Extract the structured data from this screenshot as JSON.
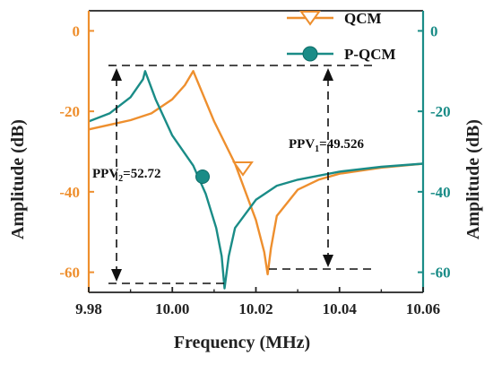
{
  "chart_data": {
    "type": "line",
    "xlabel": "Frequency (MHz)",
    "ylabel_left": "Amplitude (dB)",
    "ylabel_right": "Amplitude (dB)",
    "xlim": [
      9.98,
      10.06
    ],
    "ylim": [
      -65,
      5
    ],
    "x_ticks": [
      "9.98",
      "10.00",
      "10.02",
      "10.04",
      "10.06"
    ],
    "y_ticks_left": [
      "0",
      "-20",
      "-40",
      "-60"
    ],
    "y_ticks_right": [
      "0",
      "-20",
      "-40",
      "-60"
    ],
    "grid": false,
    "legend_position": "top-right",
    "series": [
      {
        "name": "QCM",
        "color": "#ee8f2e",
        "marker": "triangle-down",
        "x": [
          9.98,
          9.99,
          9.995,
          10.0,
          10.003,
          10.005,
          10.01,
          10.015,
          10.02,
          10.022,
          10.0228,
          10.0236,
          10.025,
          10.03,
          10.035,
          10.04,
          10.05,
          10.06
        ],
        "y": [
          -24.5,
          -22.2,
          -20.5,
          -17.0,
          -13.5,
          -10.0,
          -22.5,
          -33.0,
          -47.0,
          -55.0,
          -60.5,
          -54.0,
          -46.0,
          -39.5,
          -37.0,
          -35.5,
          -34.0,
          -33.0
        ]
      },
      {
        "name": "P-QCM",
        "color": "#1a8c87",
        "marker": "circle",
        "x": [
          9.98,
          9.985,
          9.99,
          9.993,
          9.9935,
          9.996,
          10.0,
          10.005,
          10.008,
          10.0105,
          10.0118,
          10.0125,
          10.0135,
          10.015,
          10.02,
          10.025,
          10.03,
          10.04,
          10.05,
          10.06
        ],
        "y": [
          -22.5,
          -20.5,
          -16.5,
          -12.0,
          -10.0,
          -17.0,
          -26.0,
          -33.5,
          -40.5,
          -49.0,
          -56.0,
          -64.0,
          -56.0,
          -49.0,
          -42.0,
          -38.5,
          -37.0,
          -35.0,
          -33.8,
          -33.0
        ]
      }
    ],
    "annotations": [
      {
        "label_main": "PPV",
        "label_sub": "2",
        "label_value": "=52.72"
      },
      {
        "label_main": "PPV",
        "label_sub": "1",
        "label_value": "=49.526"
      }
    ]
  },
  "colors": {
    "qcm": "#ee8f2e",
    "pqcm": "#1a8c87",
    "axis": "#222222"
  }
}
